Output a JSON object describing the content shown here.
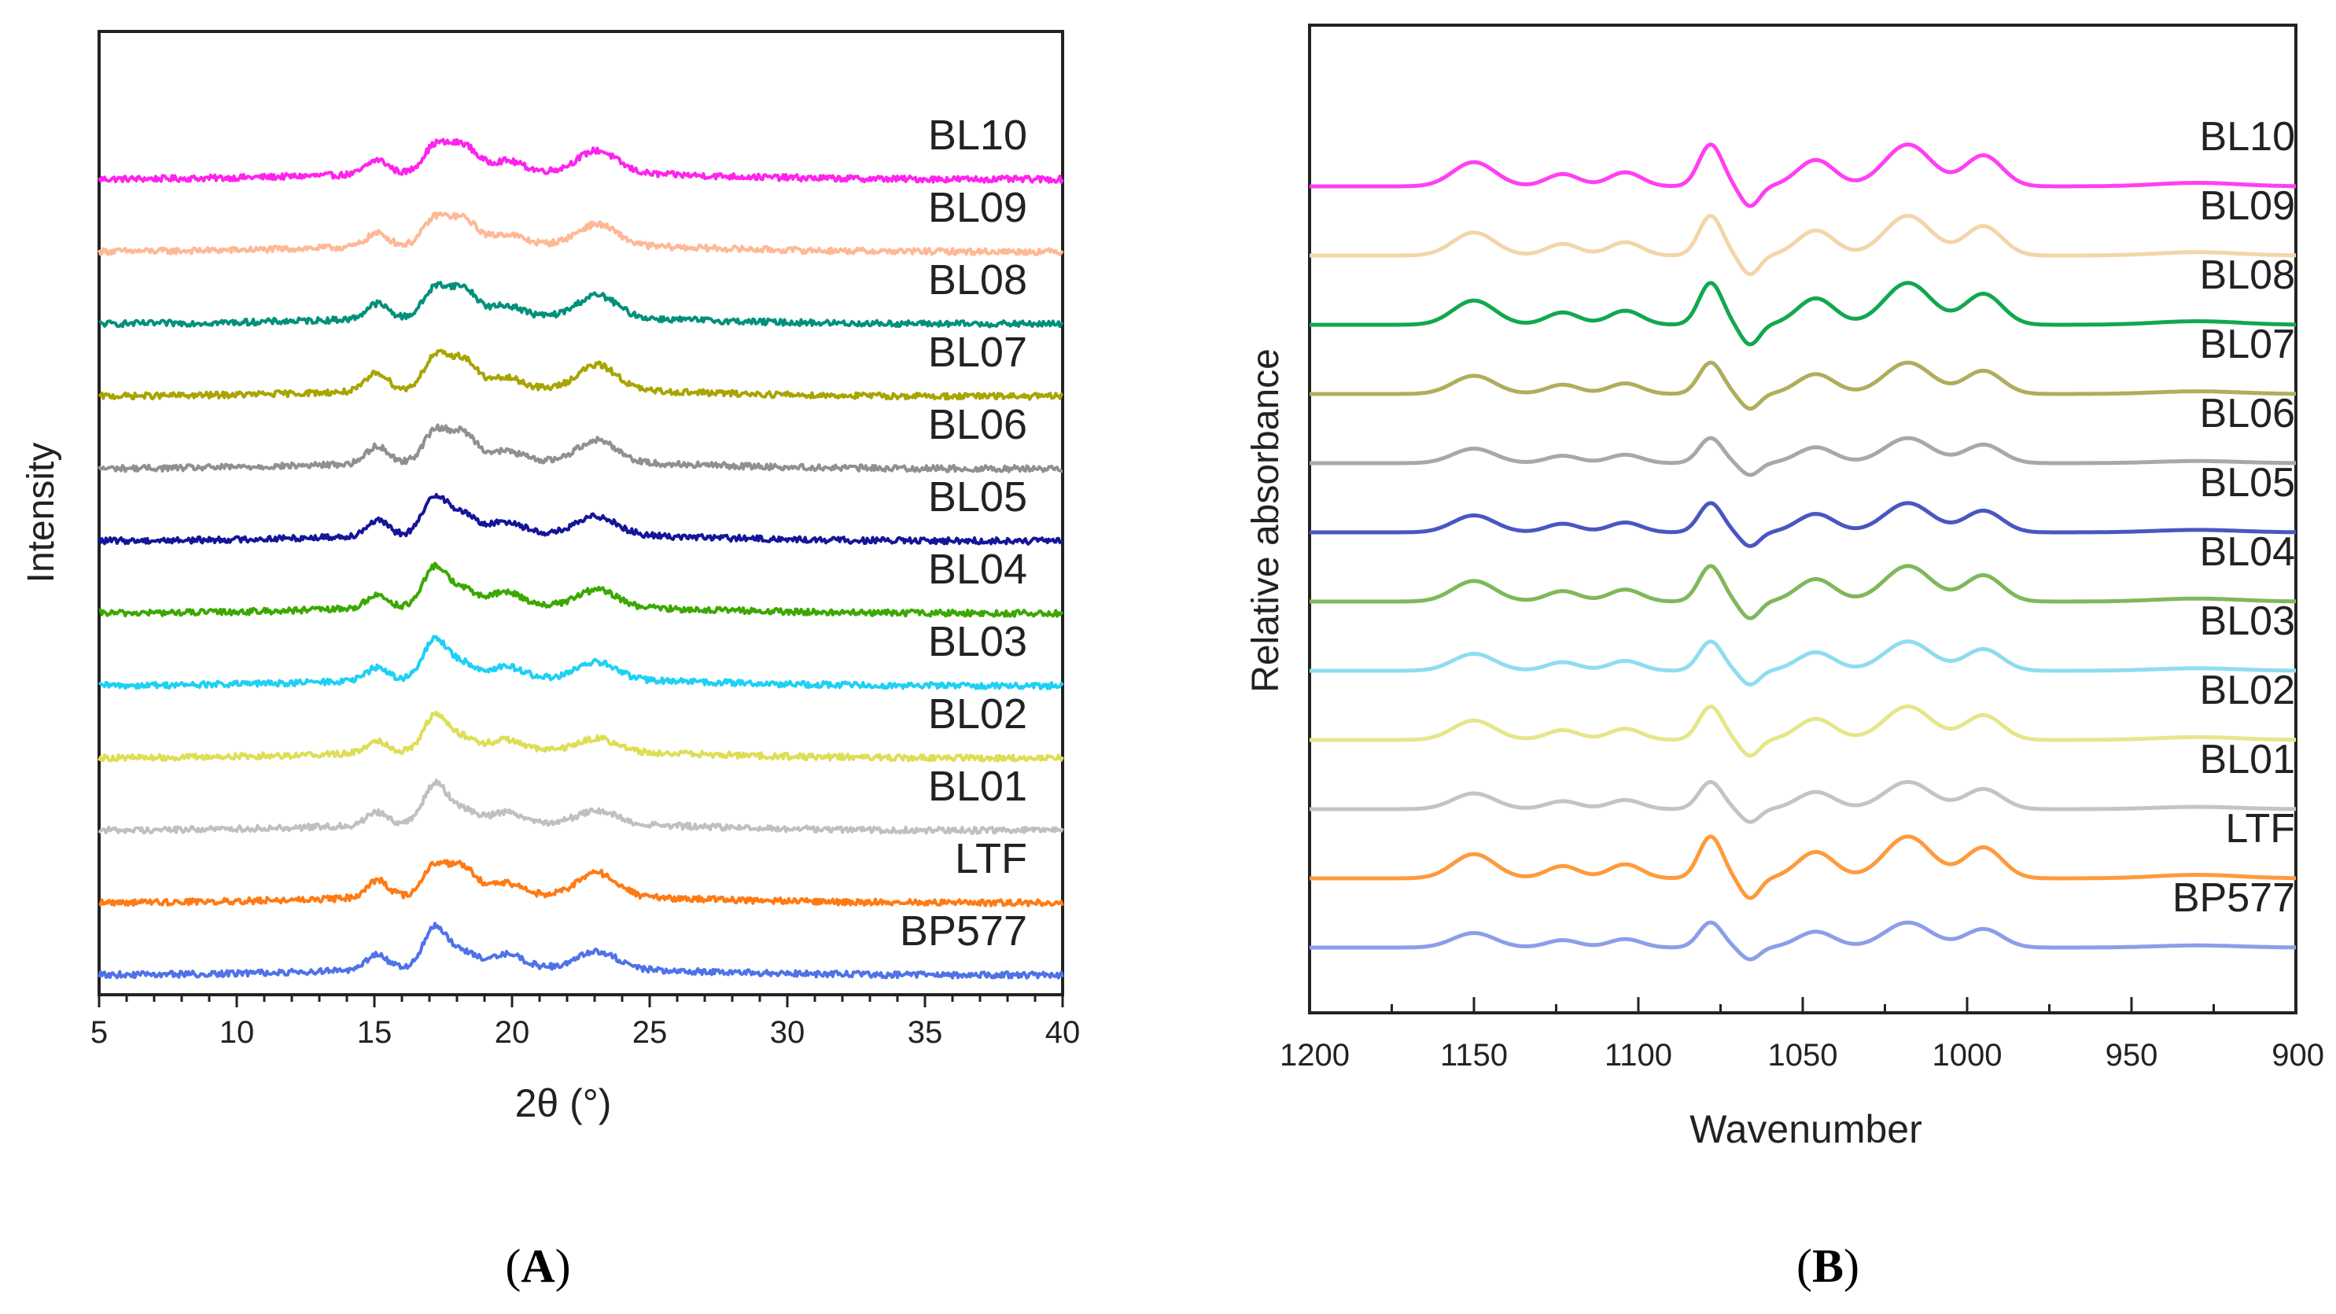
{
  "chart_data": [
    {
      "panel": "A",
      "type": "line",
      "subtitle": "(A)",
      "panel_letter": "A",
      "xlabel": "2θ (°)",
      "ylabel": "Intensity",
      "xlim": [
        5,
        40
      ],
      "xticks": [
        "5",
        "10",
        "15",
        "20",
        "25",
        "30",
        "35",
        "40"
      ],
      "tick_values": [
        5,
        10,
        15,
        20,
        25,
        30,
        35,
        40
      ],
      "peaks": [
        {
          "center": 15.1,
          "width": 0.55,
          "height": 0.5
        },
        {
          "center": 17.2,
          "width": 0.6,
          "height": 0.85
        },
        {
          "center": 18.2,
          "width": 0.7,
          "height": 0.7
        },
        {
          "center": 19.8,
          "width": 0.8,
          "height": 0.45
        },
        {
          "center": 23.1,
          "width": 1.0,
          "height": 0.6
        }
      ],
      "series": [
        {
          "name": "BL10",
          "color": "#ff22ee",
          "offset": 11,
          "peak_scale": [
            0.65,
            0.7,
            0.9,
            0.55,
            0.85
          ]
        },
        {
          "name": "BL09",
          "color": "#ffb896",
          "offset": 10,
          "peak_scale": [
            0.6,
            0.7,
            0.85,
            0.5,
            0.8
          ]
        },
        {
          "name": "BL08",
          "color": "#00917a",
          "offset": 9,
          "peak_scale": [
            0.7,
            0.75,
            0.95,
            0.55,
            0.85
          ]
        },
        {
          "name": "BL07",
          "color": "#a8a400",
          "offset": 8,
          "peak_scale": [
            0.85,
            0.85,
            1.0,
            0.55,
            0.95
          ]
        },
        {
          "name": "BL06",
          "color": "#909090",
          "offset": 7,
          "peak_scale": [
            0.8,
            0.8,
            0.95,
            0.5,
            0.85
          ]
        },
        {
          "name": "BL05",
          "color": "#15159a",
          "offset": 6,
          "peak_scale": [
            0.7,
            1.0,
            0.65,
            0.6,
            0.7
          ]
        },
        {
          "name": "BL04",
          "color": "#3ba800",
          "offset": 5,
          "peak_scale": [
            0.6,
            1.05,
            0.55,
            0.7,
            0.65
          ]
        },
        {
          "name": "BL03",
          "color": "#1ed0f4",
          "offset": 4,
          "peak_scale": [
            0.6,
            1.05,
            0.5,
            0.6,
            0.65
          ]
        },
        {
          "name": "BL02",
          "color": "#dede55",
          "offset": 3,
          "peak_scale": [
            0.55,
            0.95,
            0.45,
            0.55,
            0.5
          ]
        },
        {
          "name": "BL01",
          "color": "#c0c0c0",
          "offset": 2,
          "peak_scale": [
            0.6,
            1.05,
            0.45,
            0.55,
            0.5
          ]
        },
        {
          "name": "LTF",
          "color": "#ff7a14",
          "offset": 1,
          "peak_scale": [
            0.8,
            0.8,
            0.95,
            0.6,
            0.9
          ]
        },
        {
          "name": "BP577",
          "color": "#4f72e8",
          "offset": 0,
          "peak_scale": [
            0.7,
            1.1,
            0.5,
            0.7,
            0.65
          ]
        }
      ]
    },
    {
      "panel": "B",
      "type": "line",
      "subtitle": "(B)",
      "panel_letter": "B",
      "xlabel": "Wavenumber",
      "ylabel": "Relative absorbance",
      "xlim": [
        1200,
        900
      ],
      "xticks": [
        "1200",
        "1150",
        "1100",
        "1050",
        "1000",
        "950",
        "900"
      ],
      "tick_values": [
        1200,
        1150,
        1100,
        1050,
        1000,
        950,
        900
      ],
      "bands": [
        {
          "center": 1150,
          "width": 9,
          "height": 0.55
        },
        {
          "center": 1123,
          "width": 7,
          "height": 0.28
        },
        {
          "center": 1104,
          "width": 7,
          "height": 0.32
        },
        {
          "center": 1078,
          "width": 5,
          "height": 0.95
        },
        {
          "center": 1066,
          "width": 4,
          "height": -0.45
        },
        {
          "center": 1046,
          "width": 8,
          "height": 0.6
        },
        {
          "center": 1018,
          "width": 10,
          "height": 0.95
        },
        {
          "center": 995,
          "width": 8,
          "height": 0.7
        },
        {
          "center": 930,
          "width": 18,
          "height": 0.08
        }
      ],
      "series": [
        {
          "name": "BL10",
          "color": "#ff3ff2",
          "offset": 11,
          "scale": 1.0
        },
        {
          "name": "BL09",
          "color": "#f3d5a8",
          "offset": 10,
          "scale": 0.95
        },
        {
          "name": "BL08",
          "color": "#11a84e",
          "offset": 9,
          "scale": 1.0
        },
        {
          "name": "BL07",
          "color": "#b0ad5c",
          "offset": 8,
          "scale": 0.75
        },
        {
          "name": "BL06",
          "color": "#a8a8a8",
          "offset": 7,
          "scale": 0.6
        },
        {
          "name": "BL05",
          "color": "#4a56c0",
          "offset": 6,
          "scale": 0.7
        },
        {
          "name": "BL04",
          "color": "#7fb85a",
          "offset": 5,
          "scale": 0.85
        },
        {
          "name": "BL03",
          "color": "#8fdcf0",
          "offset": 4,
          "scale": 0.7
        },
        {
          "name": "BL02",
          "color": "#e6e68a",
          "offset": 3,
          "scale": 0.8
        },
        {
          "name": "BL01",
          "color": "#c4c4c4",
          "offset": 2,
          "scale": 0.65
        },
        {
          "name": "LTF",
          "color": "#ff9a3c",
          "offset": 1,
          "scale": 1.0
        },
        {
          "name": "BP577",
          "color": "#8c9ee8",
          "offset": 0,
          "scale": 0.6
        }
      ]
    }
  ]
}
